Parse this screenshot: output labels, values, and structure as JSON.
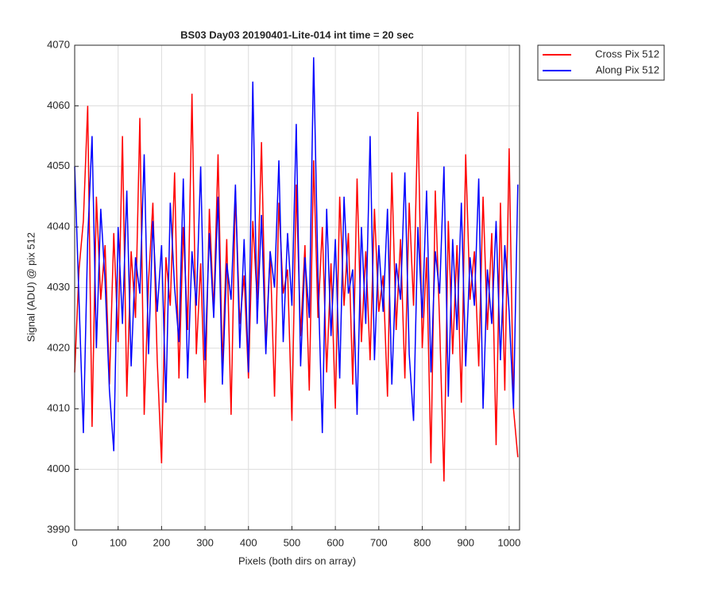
{
  "chart_data": {
    "type": "line",
    "title": "BS03 Day03 20190401-Lite-014 int time = 20 sec",
    "x_label": "Pixels (both dirs on array)",
    "y_label": "Signal (ADU) @ pix 512",
    "x": [
      0,
      10,
      20,
      30,
      40,
      50,
      60,
      70,
      80,
      90,
      100,
      110,
      120,
      130,
      140,
      150,
      160,
      170,
      180,
      190,
      200,
      210,
      220,
      230,
      240,
      250,
      260,
      270,
      280,
      290,
      300,
      310,
      320,
      330,
      340,
      350,
      360,
      370,
      380,
      390,
      400,
      410,
      420,
      430,
      440,
      450,
      460,
      470,
      480,
      490,
      500,
      510,
      520,
      530,
      540,
      550,
      560,
      570,
      580,
      590,
      600,
      610,
      620,
      630,
      640,
      650,
      660,
      670,
      680,
      690,
      700,
      710,
      720,
      730,
      740,
      750,
      760,
      770,
      780,
      790,
      800,
      810,
      820,
      830,
      840,
      850,
      860,
      870,
      880,
      890,
      900,
      910,
      920,
      930,
      940,
      950,
      960,
      970,
      980,
      990,
      1000,
      1010,
      1020
    ],
    "series": [
      {
        "name": "Cross Pix 512",
        "color": "#ff0000",
        "values": [
          4016,
          4033,
          4041,
          4060,
          4007,
          4045,
          4028,
          4037,
          4014,
          4039,
          4021,
          4055,
          4012,
          4036,
          4025,
          4058,
          4009,
          4031,
          4044,
          4018,
          4001,
          4035,
          4027,
          4049,
          4015,
          4040,
          4023,
          4062,
          4019,
          4034,
          4011,
          4043,
          4026,
          4052,
          4017,
          4038,
          4009,
          4046,
          4024,
          4032,
          4015,
          4041,
          4028,
          4054,
          4020,
          4036,
          4012,
          4044,
          4029,
          4033,
          4008,
          4047,
          4022,
          4037,
          4013,
          4051,
          4025,
          4040,
          4016,
          4034,
          4010,
          4045,
          4027,
          4039,
          4014,
          4048,
          4021,
          4036,
          4018,
          4043,
          4026,
          4032,
          4012,
          4049,
          4023,
          4038,
          4015,
          4044,
          4027,
          4059,
          4020,
          4035,
          4001,
          4046,
          4024,
          3998,
          4041,
          4019,
          4037,
          4011,
          4052,
          4028,
          4036,
          4017,
          4045,
          4023,
          4039,
          4004,
          4044,
          4013,
          4053,
          4010,
          4002
        ]
      },
      {
        "name": "Along Pix 512",
        "color": "#0000ff",
        "values": [
          4050,
          4028,
          4006,
          4038,
          4055,
          4020,
          4043,
          4031,
          4013,
          4003,
          4040,
          4024,
          4046,
          4017,
          4035,
          4029,
          4052,
          4019,
          4041,
          4026,
          4037,
          4011,
          4044,
          4030,
          4021,
          4048,
          4015,
          4036,
          4027,
          4050,
          4018,
          4039,
          4025,
          4045,
          4014,
          4034,
          4028,
          4047,
          4020,
          4038,
          4016,
          4064,
          4024,
          4042,
          4019,
          4036,
          4030,
          4051,
          4021,
          4039,
          4027,
          4057,
          4017,
          4035,
          4025,
          4068,
          4032,
          4006,
          4043,
          4022,
          4038,
          4015,
          4045,
          4029,
          4033,
          4009,
          4040,
          4024,
          4055,
          4018,
          4037,
          4026,
          4043,
          4014,
          4034,
          4028,
          4049,
          4019,
          4008,
          4040,
          4025,
          4046,
          4016,
          4036,
          4029,
          4050,
          4012,
          4038,
          4023,
          4044,
          4017,
          4035,
          4027,
          4048,
          4010,
          4033,
          4024,
          4041,
          4018,
          4037,
          4026,
          4010,
          4047
        ]
      }
    ],
    "xlim": [
      0,
      1024
    ],
    "ylim": [
      3990,
      4070
    ],
    "xticks": [
      0,
      100,
      200,
      300,
      400,
      500,
      600,
      700,
      800,
      900,
      1000
    ],
    "yticks": [
      3990,
      4000,
      4010,
      4020,
      4030,
      4040,
      4050,
      4060,
      4070
    ],
    "grid": true,
    "legend": "northeastoutside"
  }
}
